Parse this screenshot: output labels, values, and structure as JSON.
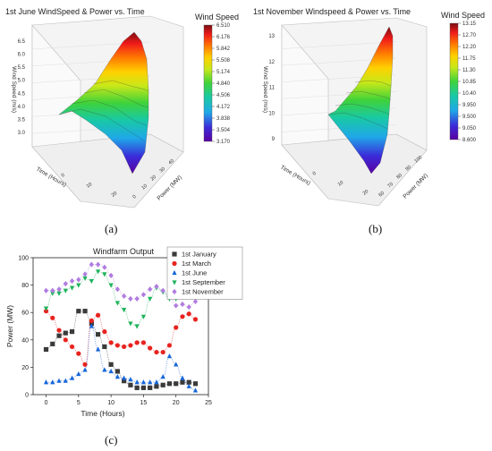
{
  "panel_a": {
    "caption": "(a)",
    "chart_data": {
      "type": "surface3d",
      "title": "1st June WindSpeed & Power vs. Time",
      "zlabel": "Wind Speed (m/s)",
      "xlabel": "Time (Hours)",
      "ylabel": "Power (MW)",
      "z_ticks": [
        "3.0",
        "3.5",
        "4.0",
        "4.5",
        "5.0",
        "5.5",
        "6.0",
        "6.5"
      ],
      "x_ticks": [
        "0",
        "10",
        "20"
      ],
      "y_ticks": [
        "0",
        "10",
        "20",
        "30",
        "40"
      ],
      "colorbar_title": "Wind Speed",
      "colorbar_ticks": [
        "6.510",
        "6.176",
        "5.842",
        "5.508",
        "5.174",
        "4.840",
        "4.506",
        "4.172",
        "3.838",
        "3.504",
        "3.170"
      ]
    }
  },
  "panel_b": {
    "caption": "(b)",
    "chart_data": {
      "type": "surface3d",
      "title": "1st November Windspeed & Power vs. Time",
      "zlabel": "Wind Speed (m/s)",
      "xlabel": "Time (Hours)",
      "ylabel": "Power (MW)",
      "z_ticks": [
        "9",
        "10",
        "11",
        "12",
        "13"
      ],
      "x_ticks": [
        "0",
        "10",
        "20"
      ],
      "y_ticks": [
        "60",
        "70",
        "80",
        "90",
        "100"
      ],
      "colorbar_title": "Wind Speed",
      "colorbar_ticks": [
        "13.15",
        "12.70",
        "12.20",
        "11.75",
        "11.30",
        "10.85",
        "10.40",
        "9.950",
        "9.500",
        "9.050",
        "8.600"
      ]
    }
  },
  "panel_c": {
    "caption": "(c)",
    "chart_data": {
      "type": "scatter",
      "title": "Windfarm Output",
      "xlabel": "Time (Hours)",
      "ylabel": "Power (MW)",
      "xlim": [
        -2,
        25
      ],
      "ylim": [
        0,
        100
      ],
      "x_ticks": [
        0,
        5,
        10,
        15,
        20,
        25
      ],
      "y_ticks": [
        0,
        20,
        40,
        60,
        80,
        100
      ],
      "legend_position": "top-right",
      "x": [
        0,
        1,
        2,
        3,
        4,
        5,
        6,
        7,
        8,
        9,
        10,
        11,
        12,
        13,
        14,
        15,
        16,
        17,
        18,
        19,
        20,
        21,
        22,
        23
      ],
      "series": [
        {
          "name": "1st January",
          "marker": "square",
          "color": "#3a3a3a",
          "values": [
            33,
            37,
            43,
            45,
            46,
            61,
            61,
            52,
            44,
            35,
            22,
            17,
            10,
            7,
            5,
            5,
            5,
            6,
            7,
            8,
            8,
            9,
            9,
            8
          ]
        },
        {
          "name": "1st March",
          "marker": "circle",
          "color": "#e8231f",
          "values": [
            61,
            56,
            47,
            40,
            35,
            30,
            22,
            54,
            58,
            46,
            38,
            36,
            35,
            36,
            38,
            38,
            34,
            31,
            31,
            36,
            49,
            57,
            59,
            55
          ]
        },
        {
          "name": "1st June",
          "marker": "triangle-up",
          "color": "#1565d8",
          "values": [
            9,
            9,
            10,
            10,
            12,
            15,
            18,
            50,
            33,
            18,
            17,
            13,
            12,
            11,
            9,
            9,
            9,
            9,
            13,
            28,
            22,
            12,
            6,
            3
          ]
        },
        {
          "name": "1st September",
          "marker": "triangle-down",
          "color": "#1db35a",
          "values": [
            63,
            74,
            74,
            76,
            78,
            80,
            85,
            83,
            90,
            88,
            80,
            67,
            62,
            52,
            50,
            57,
            70,
            78,
            75,
            70,
            70,
            73,
            74,
            75
          ]
        },
        {
          "name": "1st November",
          "marker": "diamond",
          "color": "#b07ce0",
          "values": [
            76,
            76,
            77,
            81,
            83,
            84,
            88,
            95,
            95,
            93,
            87,
            77,
            72,
            70,
            70,
            73,
            77,
            79,
            76,
            72,
            65,
            66,
            64,
            68
          ]
        }
      ]
    }
  }
}
